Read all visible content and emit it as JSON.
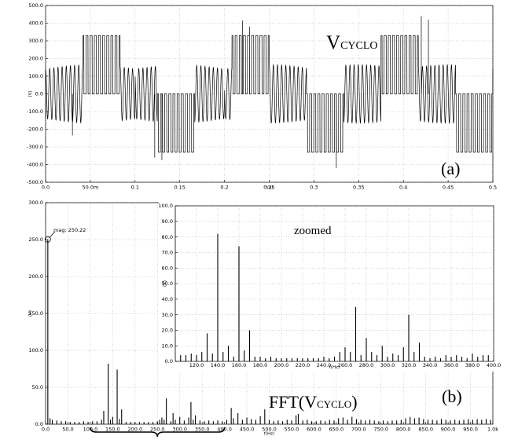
{
  "chart_data": [
    {
      "id": "a",
      "type": "line",
      "panel_label": "(a)",
      "annotation": "V",
      "annotation_subscript": "CYCLO",
      "xlabel": "t(s)",
      "ylabel": "(V)",
      "xlim": [
        0,
        0.5
      ],
      "ylim": [
        -500,
        500
      ],
      "xticks": [
        0,
        0.05,
        0.1,
        0.15,
        0.2,
        0.25,
        0.3,
        0.35,
        0.4,
        0.45,
        0.5
      ],
      "xtick_labels": [
        "0.0",
        "50.0m",
        "0.1",
        "0.15",
        "0.2",
        "0.25",
        "0.3",
        "0.35",
        "0.4",
        "0.45",
        "0.5"
      ],
      "yticks": [
        -500,
        -400,
        -300,
        -200,
        -100,
        0,
        100,
        200,
        300,
        400,
        500
      ],
      "ytick_labels": [
        "-500.0",
        "-400.0",
        "-300.0",
        "-200.0",
        "-100.0",
        "0.0",
        "100.0",
        "200.0",
        "300.0",
        "400.0",
        "500.0"
      ],
      "series": [
        {
          "fundamental_hz": 5,
          "envelope_amplitude": 165,
          "dc_link_levels": [
            -330,
            -165,
            0,
            165,
            330
          ],
          "switching_cycles_per_segment": 9,
          "spike_peaks": [
            {
              "t": 0.03,
              "v": -235
            },
            {
              "t": 0.122,
              "v": -360
            },
            {
              "t": 0.13,
              "v": -375
            },
            {
              "t": 0.22,
              "v": 415
            },
            {
              "t": 0.228,
              "v": 380
            },
            {
              "t": 0.325,
              "v": -420
            },
            {
              "t": 0.42,
              "v": 440
            },
            {
              "t": 0.428,
              "v": 420
            }
          ]
        }
      ]
    },
    {
      "id": "b",
      "type": "bar",
      "panel_label": "(b)",
      "annotation": "FFT(V",
      "annotation_subscript": "CYCLO",
      "annotation_close": ")",
      "xlabel": "f(Hz)",
      "ylabel": "(V)",
      "xlim": [
        0,
        1000
      ],
      "ylim": [
        0,
        300
      ],
      "marker": {
        "label": "mag: 250.22",
        "x": 5,
        "y": 250.22
      },
      "xticks": [
        0,
        50,
        100,
        150,
        200,
        250,
        300,
        350,
        400,
        450,
        500,
        550,
        600,
        650,
        700,
        750,
        800,
        850,
        900,
        950,
        1000
      ],
      "xtick_labels": [
        "0.0",
        "50.0",
        "100.0",
        "150.0",
        "200.0",
        "250.0",
        "300.0",
        "350.0",
        "400.0",
        "450.0",
        "500.0",
        "550.0",
        "600.0",
        "650.0",
        "700.0",
        "750.0",
        "800.0",
        "850.0",
        "900.0",
        "950.0",
        "1.0k"
      ],
      "yticks": [
        0,
        50,
        100,
        150,
        200,
        250,
        300
      ],
      "ytick_labels": [
        "0.0",
        "50.0",
        "100.0",
        "150.0",
        "200.0",
        "250.0",
        "300.0"
      ],
      "bars": [
        [
          5,
          250.22
        ],
        [
          10,
          8
        ],
        [
          15,
          6
        ],
        [
          25,
          5
        ],
        [
          35,
          4
        ],
        [
          45,
          4
        ],
        [
          55,
          3
        ],
        [
          65,
          3
        ],
        [
          75,
          3
        ],
        [
          85,
          4
        ],
        [
          95,
          3
        ],
        [
          105,
          4
        ],
        [
          115,
          4
        ],
        [
          125,
          6
        ],
        [
          130,
          18
        ],
        [
          140,
          82
        ],
        [
          145,
          6
        ],
        [
          150,
          10
        ],
        [
          160,
          74
        ],
        [
          165,
          7
        ],
        [
          170,
          20
        ],
        [
          180,
          3
        ],
        [
          190,
          3
        ],
        [
          200,
          3
        ],
        [
          210,
          3
        ],
        [
          220,
          3
        ],
        [
          230,
          3
        ],
        [
          240,
          3
        ],
        [
          250,
          4
        ],
        [
          255,
          6
        ],
        [
          260,
          9
        ],
        [
          265,
          6
        ],
        [
          270,
          35
        ],
        [
          280,
          4
        ],
        [
          285,
          15
        ],
        [
          290,
          6
        ],
        [
          300,
          10
        ],
        [
          310,
          5
        ],
        [
          320,
          9
        ],
        [
          325,
          30
        ],
        [
          330,
          6
        ],
        [
          335,
          12
        ],
        [
          345,
          5
        ],
        [
          355,
          4
        ],
        [
          365,
          5
        ],
        [
          375,
          4
        ],
        [
          385,
          5
        ],
        [
          395,
          4
        ],
        [
          405,
          6
        ],
        [
          415,
          22
        ],
        [
          420,
          8
        ],
        [
          430,
          15
        ],
        [
          440,
          6
        ],
        [
          450,
          9
        ],
        [
          460,
          7
        ],
        [
          470,
          6
        ],
        [
          480,
          11
        ],
        [
          490,
          20
        ],
        [
          500,
          6
        ],
        [
          510,
          4
        ],
        [
          520,
          5
        ],
        [
          530,
          4
        ],
        [
          540,
          6
        ],
        [
          550,
          5
        ],
        [
          560,
          12
        ],
        [
          565,
          14
        ],
        [
          575,
          5
        ],
        [
          585,
          6
        ],
        [
          595,
          4
        ],
        [
          605,
          4
        ],
        [
          615,
          5
        ],
        [
          625,
          4
        ],
        [
          635,
          6
        ],
        [
          645,
          5
        ],
        [
          655,
          8
        ],
        [
          665,
          9
        ],
        [
          675,
          6
        ],
        [
          685,
          10
        ],
        [
          695,
          7
        ],
        [
          705,
          6
        ],
        [
          715,
          5
        ],
        [
          725,
          6
        ],
        [
          735,
          5
        ],
        [
          745,
          4
        ],
        [
          755,
          5
        ],
        [
          765,
          4
        ],
        [
          775,
          5
        ],
        [
          785,
          5
        ],
        [
          795,
          6
        ],
        [
          805,
          8
        ],
        [
          815,
          10
        ],
        [
          825,
          8
        ],
        [
          835,
          9
        ],
        [
          845,
          7
        ],
        [
          855,
          6
        ],
        [
          865,
          6
        ],
        [
          875,
          5
        ],
        [
          885,
          7
        ],
        [
          895,
          6
        ],
        [
          905,
          5
        ],
        [
          915,
          6
        ],
        [
          925,
          5
        ],
        [
          935,
          6
        ],
        [
          945,
          7
        ],
        [
          955,
          6
        ],
        [
          965,
          7
        ],
        [
          975,
          6
        ],
        [
          985,
          7
        ],
        [
          995,
          6
        ]
      ]
    },
    {
      "id": "b-zoomed",
      "type": "bar",
      "annotation": "zoomed",
      "xlabel": "f(Hz)",
      "ylabel": "(V)",
      "xlim": [
        100,
        400
      ],
      "ylim": [
        0,
        100
      ],
      "xticks": [
        120,
        140,
        160,
        180,
        200,
        220,
        240,
        260,
        280,
        300,
        320,
        340,
        360,
        380,
        400
      ],
      "xtick_labels": [
        "120.0",
        "140.0",
        "160.0",
        "180.0",
        "200.0",
        "220.0",
        "240.0",
        "260.0",
        "280.0",
        "300.0",
        "320.0",
        "340.0",
        "360.0",
        "380.0",
        "400.0"
      ],
      "yticks": [
        0,
        10,
        20,
        30,
        40,
        50,
        60,
        70,
        80,
        90,
        100
      ],
      "ytick_labels": [
        "0.0",
        "10.0",
        "20.0",
        "30.0",
        "40.0",
        "50.0",
        "60.0",
        "70.0",
        "80.0",
        "90.0",
        "100.0"
      ],
      "bars": [
        [
          105,
          4
        ],
        [
          110,
          4
        ],
        [
          115,
          5
        ],
        [
          120,
          4
        ],
        [
          125,
          6
        ],
        [
          130,
          18
        ],
        [
          135,
          5
        ],
        [
          140,
          82
        ],
        [
          145,
          6
        ],
        [
          150,
          10
        ],
        [
          155,
          3
        ],
        [
          160,
          74
        ],
        [
          165,
          7
        ],
        [
          170,
          20
        ],
        [
          175,
          3
        ],
        [
          180,
          3
        ],
        [
          185,
          2
        ],
        [
          190,
          3
        ],
        [
          195,
          2
        ],
        [
          200,
          2
        ],
        [
          205,
          2
        ],
        [
          210,
          2
        ],
        [
          215,
          2
        ],
        [
          220,
          2
        ],
        [
          225,
          2
        ],
        [
          230,
          2
        ],
        [
          235,
          2
        ],
        [
          240,
          3
        ],
        [
          245,
          2
        ],
        [
          250,
          3
        ],
        [
          255,
          6
        ],
        [
          260,
          9
        ],
        [
          265,
          6
        ],
        [
          270,
          35
        ],
        [
          275,
          4
        ],
        [
          280,
          15
        ],
        [
          285,
          6
        ],
        [
          290,
          4
        ],
        [
          295,
          10
        ],
        [
          300,
          3
        ],
        [
          305,
          5
        ],
        [
          310,
          4
        ],
        [
          315,
          9
        ],
        [
          320,
          30
        ],
        [
          325,
          6
        ],
        [
          330,
          12
        ],
        [
          335,
          3
        ],
        [
          340,
          2
        ],
        [
          345,
          3
        ],
        [
          350,
          2
        ],
        [
          355,
          4
        ],
        [
          360,
          3
        ],
        [
          365,
          4
        ],
        [
          370,
          3
        ],
        [
          375,
          2
        ],
        [
          380,
          5
        ],
        [
          385,
          3
        ],
        [
          390,
          4
        ],
        [
          395,
          4
        ]
      ]
    }
  ]
}
